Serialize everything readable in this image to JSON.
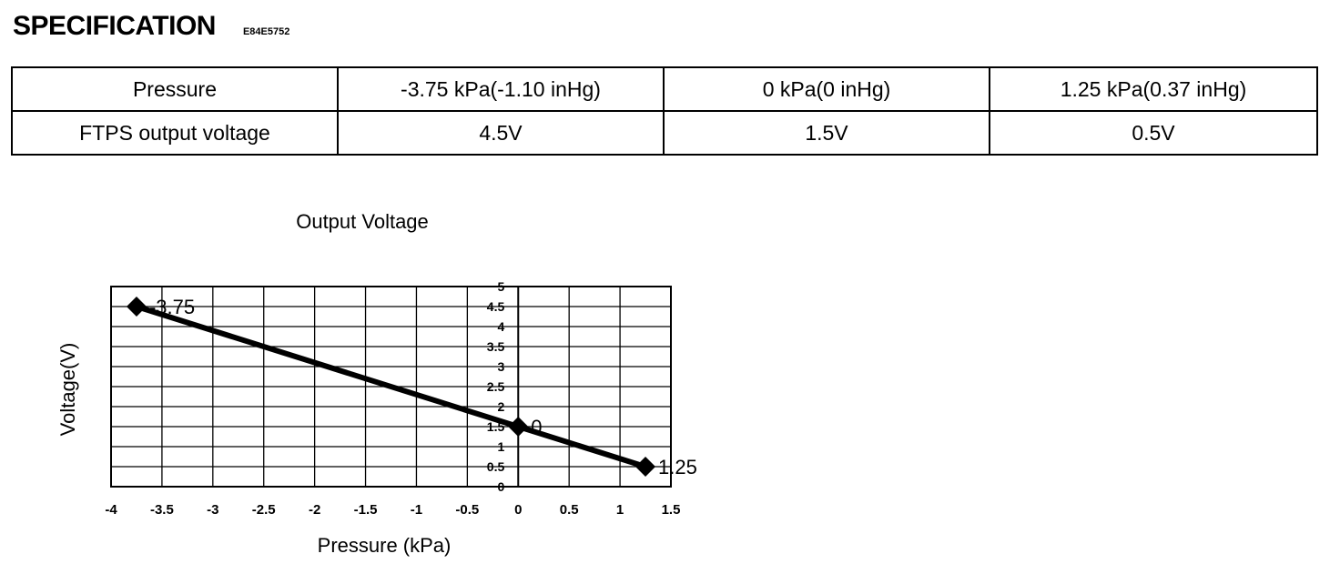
{
  "header": {
    "title": "SPECIFICATION",
    "code": "E84E5752"
  },
  "spec_table": {
    "rows": [
      {
        "label": "Pressure",
        "cells": [
          "-3.75 kPa(-1.10 inHg)",
          "0 kPa(0 inHg)",
          "1.25 kPa(0.37 inHg)"
        ]
      },
      {
        "label": "FTPS output voltage",
        "cells": [
          "4.5V",
          "1.5V",
          "0.5V"
        ]
      }
    ]
  },
  "chart_data": {
    "type": "line",
    "title": "Output Voltage",
    "xlabel": "Pressure (kPa)",
    "ylabel": "Voltage(V)",
    "xlim": [
      -4,
      1.5
    ],
    "ylim": [
      0,
      5
    ],
    "x_ticks": [
      "-4",
      "-3.5",
      "-3",
      "-2.5",
      "-2",
      "-1.5",
      "-1",
      "-0.5",
      "0",
      "0.5",
      "1",
      "1.5"
    ],
    "y_ticks": [
      "0",
      "0.5",
      "1",
      "1.5",
      "2",
      "2.5",
      "3",
      "3.5",
      "4",
      "4.5",
      "5"
    ],
    "grid": true,
    "series": [
      {
        "x": [
          -3.75,
          0,
          1.25
        ],
        "values": [
          4.5,
          1.5,
          0.5
        ],
        "point_labels": [
          "-3.75",
          "0",
          "1.25"
        ]
      }
    ]
  }
}
